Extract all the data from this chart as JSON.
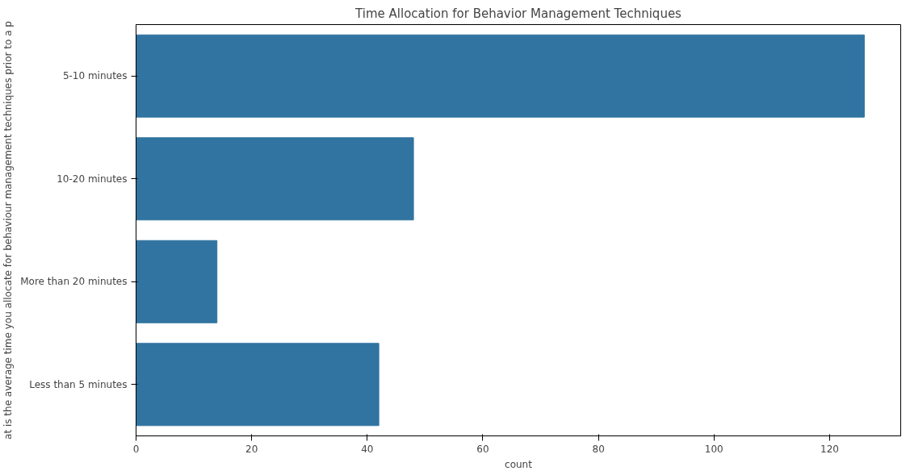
{
  "chart_data": {
    "type": "bar",
    "orientation": "horizontal",
    "title": "Time Allocation for Behavior Management Techniques",
    "xlabel": "count",
    "ylabel": "at is the average time you allocate for behaviour management techniques prior to a p",
    "categories": [
      "5-10 minutes",
      "10-20 minutes",
      "More than 20 minutes",
      "Less than 5 minutes"
    ],
    "values": [
      126,
      48,
      14,
      42
    ],
    "color": "#3274a1",
    "xlim": [
      0,
      132.3
    ],
    "xticks": [
      0,
      20,
      40,
      60,
      80,
      100,
      120
    ],
    "grid": false
  }
}
